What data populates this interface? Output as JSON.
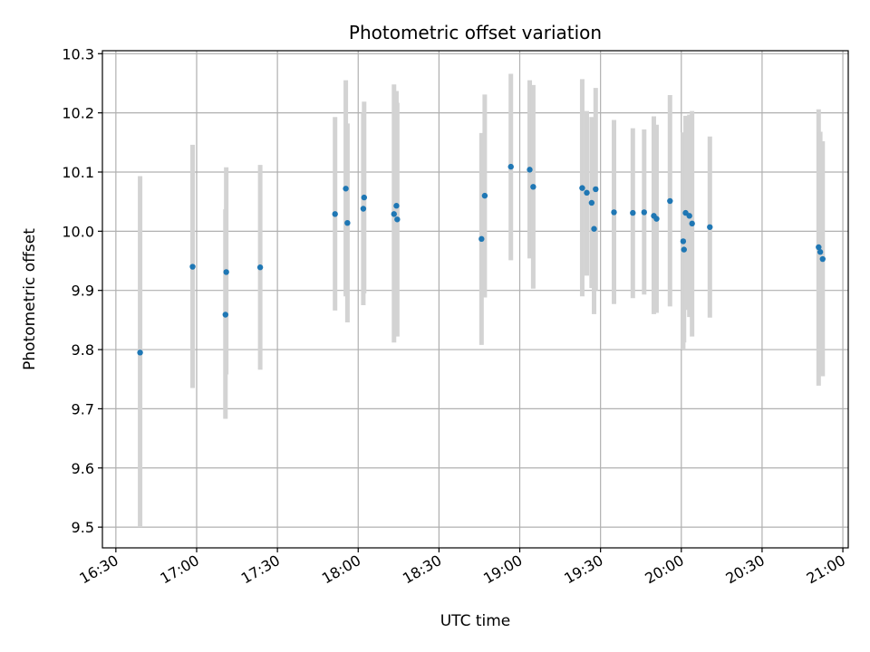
{
  "chart_data": {
    "type": "scatter",
    "title": "Photometric offset variation",
    "xlabel": "UTC time",
    "ylabel": "Photometric offset",
    "xlim_minutes": [
      985,
      1262
    ],
    "ylim": [
      9.465,
      10.305
    ],
    "grid": true,
    "x_ticks": [
      {
        "minutes": 990,
        "label": "16:30"
      },
      {
        "minutes": 1020,
        "label": "17:00"
      },
      {
        "minutes": 1050,
        "label": "17:30"
      },
      {
        "minutes": 1080,
        "label": "18:00"
      },
      {
        "minutes": 1110,
        "label": "18:30"
      },
      {
        "minutes": 1140,
        "label": "19:00"
      },
      {
        "minutes": 1170,
        "label": "19:30"
      },
      {
        "minutes": 1200,
        "label": "20:00"
      },
      {
        "minutes": 1230,
        "label": "20:30"
      },
      {
        "minutes": 1260,
        "label": "21:00"
      }
    ],
    "y_ticks": [
      9.5,
      9.6,
      9.7,
      9.8,
      9.9,
      10.0,
      10.1,
      10.2,
      10.3
    ],
    "y_tick_labels": [
      "9.5",
      "9.6",
      "9.7",
      "9.8",
      "9.9",
      "10.0",
      "10.1",
      "10.2",
      "10.3"
    ],
    "marker_color": "#1f77b4",
    "errorbar_color": "#d3d3d3",
    "points": [
      {
        "t": 999.0,
        "y": 9.795,
        "lo": 9.5,
        "hi": 10.093
      },
      {
        "t": 1018.5,
        "y": 9.94,
        "lo": 9.735,
        "hi": 10.146
      },
      {
        "t": 1030.7,
        "y": 9.859,
        "lo": 9.683,
        "hi": 10.037
      },
      {
        "t": 1031.0,
        "y": 9.931,
        "lo": 9.758,
        "hi": 10.108
      },
      {
        "t": 1043.6,
        "y": 9.939,
        "lo": 9.766,
        "hi": 10.112
      },
      {
        "t": 1071.4,
        "y": 10.029,
        "lo": 9.866,
        "hi": 10.193
      },
      {
        "t": 1075.4,
        "y": 10.072,
        "lo": 9.89,
        "hi": 10.255
      },
      {
        "t": 1076.0,
        "y": 10.014,
        "lo": 9.846,
        "hi": 10.182
      },
      {
        "t": 1081.9,
        "y": 10.038,
        "lo": 9.875,
        "hi": 10.2
      },
      {
        "t": 1082.2,
        "y": 10.057,
        "lo": 9.895,
        "hi": 10.219
      },
      {
        "t": 1093.3,
        "y": 10.029,
        "lo": 9.812,
        "hi": 10.248
      },
      {
        "t": 1094.2,
        "y": 10.043,
        "lo": 9.85,
        "hi": 10.237
      },
      {
        "t": 1094.5,
        "y": 10.02,
        "lo": 9.822,
        "hi": 10.217
      },
      {
        "t": 1125.8,
        "y": 9.987,
        "lo": 9.808,
        "hi": 10.166
      },
      {
        "t": 1127.0,
        "y": 10.06,
        "lo": 9.888,
        "hi": 10.231
      },
      {
        "t": 1136.7,
        "y": 10.109,
        "lo": 9.951,
        "hi": 10.266
      },
      {
        "t": 1143.7,
        "y": 10.104,
        "lo": 9.954,
        "hi": 10.255
      },
      {
        "t": 1145.0,
        "y": 10.075,
        "lo": 9.903,
        "hi": 10.247
      },
      {
        "t": 1163.2,
        "y": 10.073,
        "lo": 9.89,
        "hi": 10.257
      },
      {
        "t": 1164.9,
        "y": 10.065,
        "lo": 9.925,
        "hi": 10.203
      },
      {
        "t": 1166.7,
        "y": 10.048,
        "lo": 9.904,
        "hi": 10.193
      },
      {
        "t": 1167.6,
        "y": 10.004,
        "lo": 9.86,
        "hi": 10.147
      },
      {
        "t": 1168.2,
        "y": 10.071,
        "lo": 9.9,
        "hi": 10.242
      },
      {
        "t": 1175.0,
        "y": 10.032,
        "lo": 9.877,
        "hi": 10.188
      },
      {
        "t": 1182.0,
        "y": 10.031,
        "lo": 9.887,
        "hi": 10.174
      },
      {
        "t": 1186.2,
        "y": 10.032,
        "lo": 9.893,
        "hi": 10.172
      },
      {
        "t": 1189.8,
        "y": 10.026,
        "lo": 9.86,
        "hi": 10.194
      },
      {
        "t": 1190.8,
        "y": 10.021,
        "lo": 9.862,
        "hi": 10.18
      },
      {
        "t": 1195.8,
        "y": 10.051,
        "lo": 9.873,
        "hi": 10.23
      },
      {
        "t": 1200.7,
        "y": 9.983,
        "lo": 9.8,
        "hi": 10.167
      },
      {
        "t": 1201.0,
        "y": 9.969,
        "lo": 9.812,
        "hi": 10.125
      },
      {
        "t": 1201.6,
        "y": 10.031,
        "lo": 9.867,
        "hi": 10.195
      },
      {
        "t": 1203.0,
        "y": 10.026,
        "lo": 9.855,
        "hi": 10.197
      },
      {
        "t": 1204.0,
        "y": 10.013,
        "lo": 9.822,
        "hi": 10.203
      },
      {
        "t": 1210.6,
        "y": 10.007,
        "lo": 9.854,
        "hi": 10.16
      },
      {
        "t": 1251.0,
        "y": 9.973,
        "lo": 9.739,
        "hi": 10.206
      },
      {
        "t": 1251.6,
        "y": 9.965,
        "lo": 9.762,
        "hi": 10.168
      },
      {
        "t": 1252.5,
        "y": 9.953,
        "lo": 9.755,
        "hi": 10.152
      }
    ]
  }
}
